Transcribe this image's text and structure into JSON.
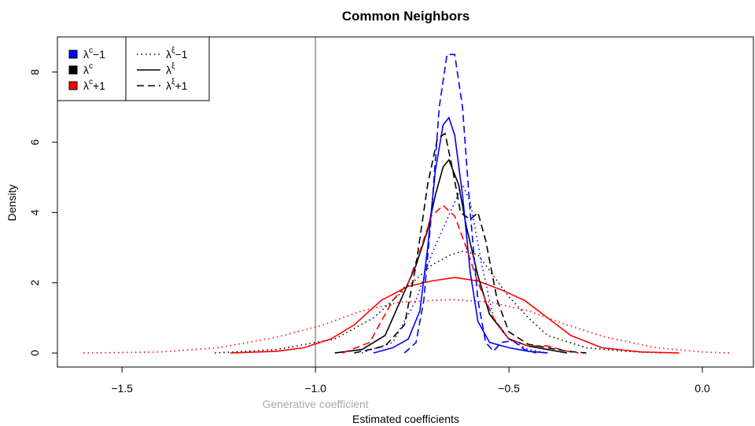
{
  "chart_data": {
    "type": "line",
    "title": "Common Neighbors",
    "x_label": "Estimated coefficients",
    "y_label": "Density",
    "xlim": [
      -1.667,
      0.132
    ],
    "ylim": [
      -0.4,
      9.0
    ],
    "xticks": [
      {
        "value": -1.5,
        "label": "−1.5"
      },
      {
        "value": -1.0,
        "label": "−1.0"
      },
      {
        "value": -0.5,
        "label": "−0.5"
      },
      {
        "value": 0.0,
        "label": "0.0"
      }
    ],
    "yticks": [
      0,
      2,
      4,
      6,
      8
    ],
    "vline": {
      "x": -1.0,
      "label": "Generative coefficient",
      "color": "#aaaaaa"
    },
    "color_legend": [
      {
        "symbol": "λ",
        "superscript": "c",
        "suffix": "−1",
        "color": "#0000ff"
      },
      {
        "symbol": "λ",
        "superscript": "c",
        "color": "#000000"
      },
      {
        "symbol": "λ",
        "superscript": "c",
        "suffix": "+1",
        "color": "#ff0000"
      }
    ],
    "linetype_legend": [
      {
        "symbol": "λ",
        "superscript": "ξ",
        "suffix": "−1",
        "linestyle": "dotted"
      },
      {
        "symbol": "λ",
        "superscript": "ξ",
        "linestyle": "solid"
      },
      {
        "symbol": "λ",
        "superscript": "ξ",
        "suffix": "+1",
        "linestyle": "dashed"
      }
    ],
    "series": [
      {
        "color": "#ff0000",
        "linestyle": "dotted",
        "x": [
          -1.6,
          -1.4,
          -1.25,
          -1.1,
          -0.98,
          -0.88,
          -0.78,
          -0.65,
          -0.55,
          -0.45,
          -0.35,
          -0.25,
          -0.12,
          0.0,
          0.07
        ],
        "values": [
          0,
          0.03,
          0.15,
          0.45,
          0.8,
          1.2,
          1.45,
          1.52,
          1.45,
          1.2,
          0.8,
          0.45,
          0.15,
          0.03,
          0
        ]
      },
      {
        "color": "#000000",
        "linestyle": "dotted",
        "x": [
          -1.26,
          -1.1,
          -0.95,
          -0.85,
          -0.75,
          -0.7,
          -0.65,
          -0.62,
          -0.58,
          -0.54,
          -0.5,
          -0.45,
          -0.4,
          -0.3,
          -0.2,
          -0.1
        ],
        "values": [
          0,
          0.1,
          0.4,
          1.0,
          2.0,
          2.5,
          2.8,
          2.9,
          2.8,
          2.2,
          1.6,
          1.0,
          0.5,
          0.15,
          0.05,
          0
        ]
      },
      {
        "color": "#0000ff",
        "linestyle": "dotted",
        "x": [
          -0.88,
          -0.8,
          -0.74,
          -0.7,
          -0.66,
          -0.62,
          -0.6,
          -0.57,
          -0.54,
          -0.5,
          -0.45,
          -0.4
        ],
        "values": [
          0,
          0.3,
          1.5,
          2.8,
          3.8,
          4.8,
          4.3,
          2.5,
          1.0,
          0.4,
          0.1,
          0
        ]
      },
      {
        "color": "#ff0000",
        "linestyle": "solid",
        "x": [
          -1.22,
          -1.1,
          -1.03,
          -0.96,
          -0.9,
          -0.83,
          -0.76,
          -0.7,
          -0.64,
          -0.58,
          -0.52,
          -0.46,
          -0.4,
          -0.34,
          -0.26,
          -0.16,
          -0.06
        ],
        "values": [
          0,
          0.05,
          0.15,
          0.4,
          0.8,
          1.5,
          1.9,
          2.05,
          2.15,
          2.05,
          1.8,
          1.5,
          1.0,
          0.5,
          0.15,
          0.03,
          0
        ]
      },
      {
        "color": "#000000",
        "linestyle": "solid",
        "x": [
          -0.95,
          -0.88,
          -0.82,
          -0.78,
          -0.74,
          -0.71,
          -0.69,
          -0.67,
          -0.655,
          -0.63,
          -0.61,
          -0.58,
          -0.55,
          -0.5,
          -0.45,
          -0.4,
          -0.35
        ],
        "values": [
          0,
          0.1,
          0.5,
          1.5,
          2.5,
          3.5,
          4.5,
          5.3,
          5.5,
          4.8,
          3.6,
          2.2,
          1.1,
          0.4,
          0.2,
          0.1,
          0
        ]
      },
      {
        "color": "#0000ff",
        "linestyle": "solid",
        "x": [
          -0.85,
          -0.8,
          -0.76,
          -0.73,
          -0.71,
          -0.69,
          -0.67,
          -0.655,
          -0.64,
          -0.62,
          -0.6,
          -0.58,
          -0.55,
          -0.5,
          -0.45,
          -0.4
        ],
        "values": [
          0,
          0.15,
          0.4,
          1.2,
          3,
          5.2,
          6.5,
          6.7,
          6.2,
          4.5,
          2.3,
          0.9,
          0.3,
          0.15,
          0.05,
          0
        ]
      },
      {
        "color": "#ff0000",
        "linestyle": "dashed",
        "x": [
          -0.93,
          -0.86,
          -0.8,
          -0.76,
          -0.73,
          -0.7,
          -0.67,
          -0.64,
          -0.61,
          -0.58,
          -0.54,
          -0.5,
          -0.45,
          -0.4,
          -0.35,
          -0.32
        ],
        "values": [
          0,
          0.3,
          1.5,
          2.0,
          2.9,
          3.9,
          4.2,
          3.9,
          3.0,
          2.0,
          1.0,
          0.4,
          0.2,
          0.2,
          0.05,
          0
        ]
      },
      {
        "color": "#000000",
        "linestyle": "dashed",
        "x": [
          -0.9,
          -0.82,
          -0.77,
          -0.74,
          -0.71,
          -0.685,
          -0.665,
          -0.645,
          -0.625,
          -0.6,
          -0.58,
          -0.56,
          -0.53,
          -0.5,
          -0.45,
          -0.4,
          -0.35,
          -0.3
        ],
        "values": [
          0,
          0.2,
          0.8,
          2.5,
          4.8,
          6.1,
          6.25,
          5.2,
          4.0,
          3.8,
          4.0,
          3.2,
          1.5,
          0.6,
          0.25,
          0.15,
          0.05,
          0
        ]
      },
      {
        "color": "#0000ff",
        "linestyle": "dashed",
        "x": [
          -0.77,
          -0.74,
          -0.72,
          -0.7,
          -0.68,
          -0.66,
          -0.64,
          -0.62,
          -0.6,
          -0.58,
          -0.56,
          -0.54,
          -0.52,
          -0.49,
          -0.46,
          -0.43
        ],
        "values": [
          0,
          0.3,
          1.5,
          4,
          7,
          8.5,
          8.5,
          7,
          4,
          1.5,
          0.3,
          0.05,
          0.3,
          0.35,
          0.1,
          0
        ]
      }
    ]
  }
}
